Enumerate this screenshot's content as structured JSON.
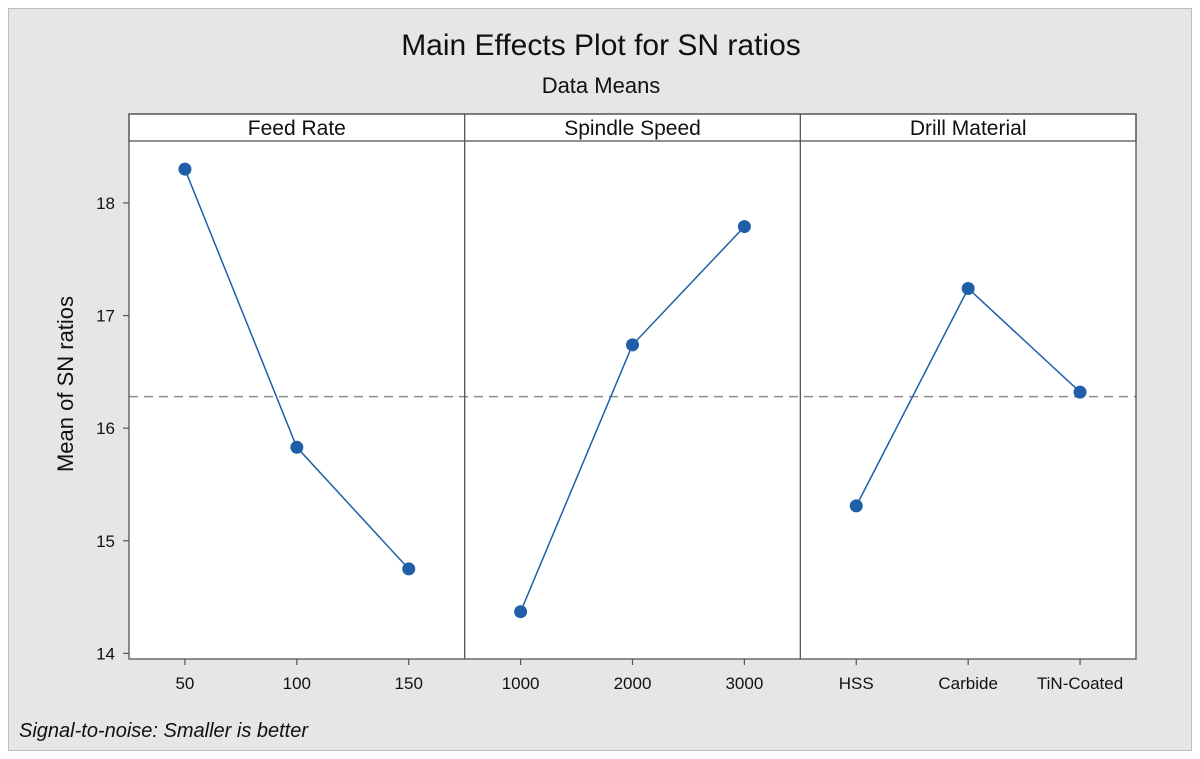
{
  "chart_data": {
    "type": "line",
    "title": "Main Effects Plot for SN ratios",
    "subtitle": "Data Means",
    "ylabel": "Mean of SN ratios",
    "ylim": [
      13.95,
      18.55
    ],
    "yticks": [
      14,
      15,
      16,
      17,
      18
    ],
    "reference_line": 16.28,
    "grid": false,
    "line_color": "#1f5fa8",
    "marker_color": "#1f5fa8",
    "footnote": "Signal-to-noise: Smaller is better",
    "panels": [
      {
        "name": "Feed Rate",
        "categories": [
          "50",
          "100",
          "150"
        ],
        "values": [
          18.3,
          15.83,
          14.75
        ]
      },
      {
        "name": "Spindle Speed",
        "categories": [
          "1000",
          "2000",
          "3000"
        ],
        "values": [
          14.37,
          16.74,
          17.79
        ]
      },
      {
        "name": "Drill Material",
        "categories": [
          "HSS",
          "Carbide",
          "TiN-Coated"
        ],
        "values": [
          15.31,
          17.24,
          16.32
        ]
      }
    ]
  }
}
